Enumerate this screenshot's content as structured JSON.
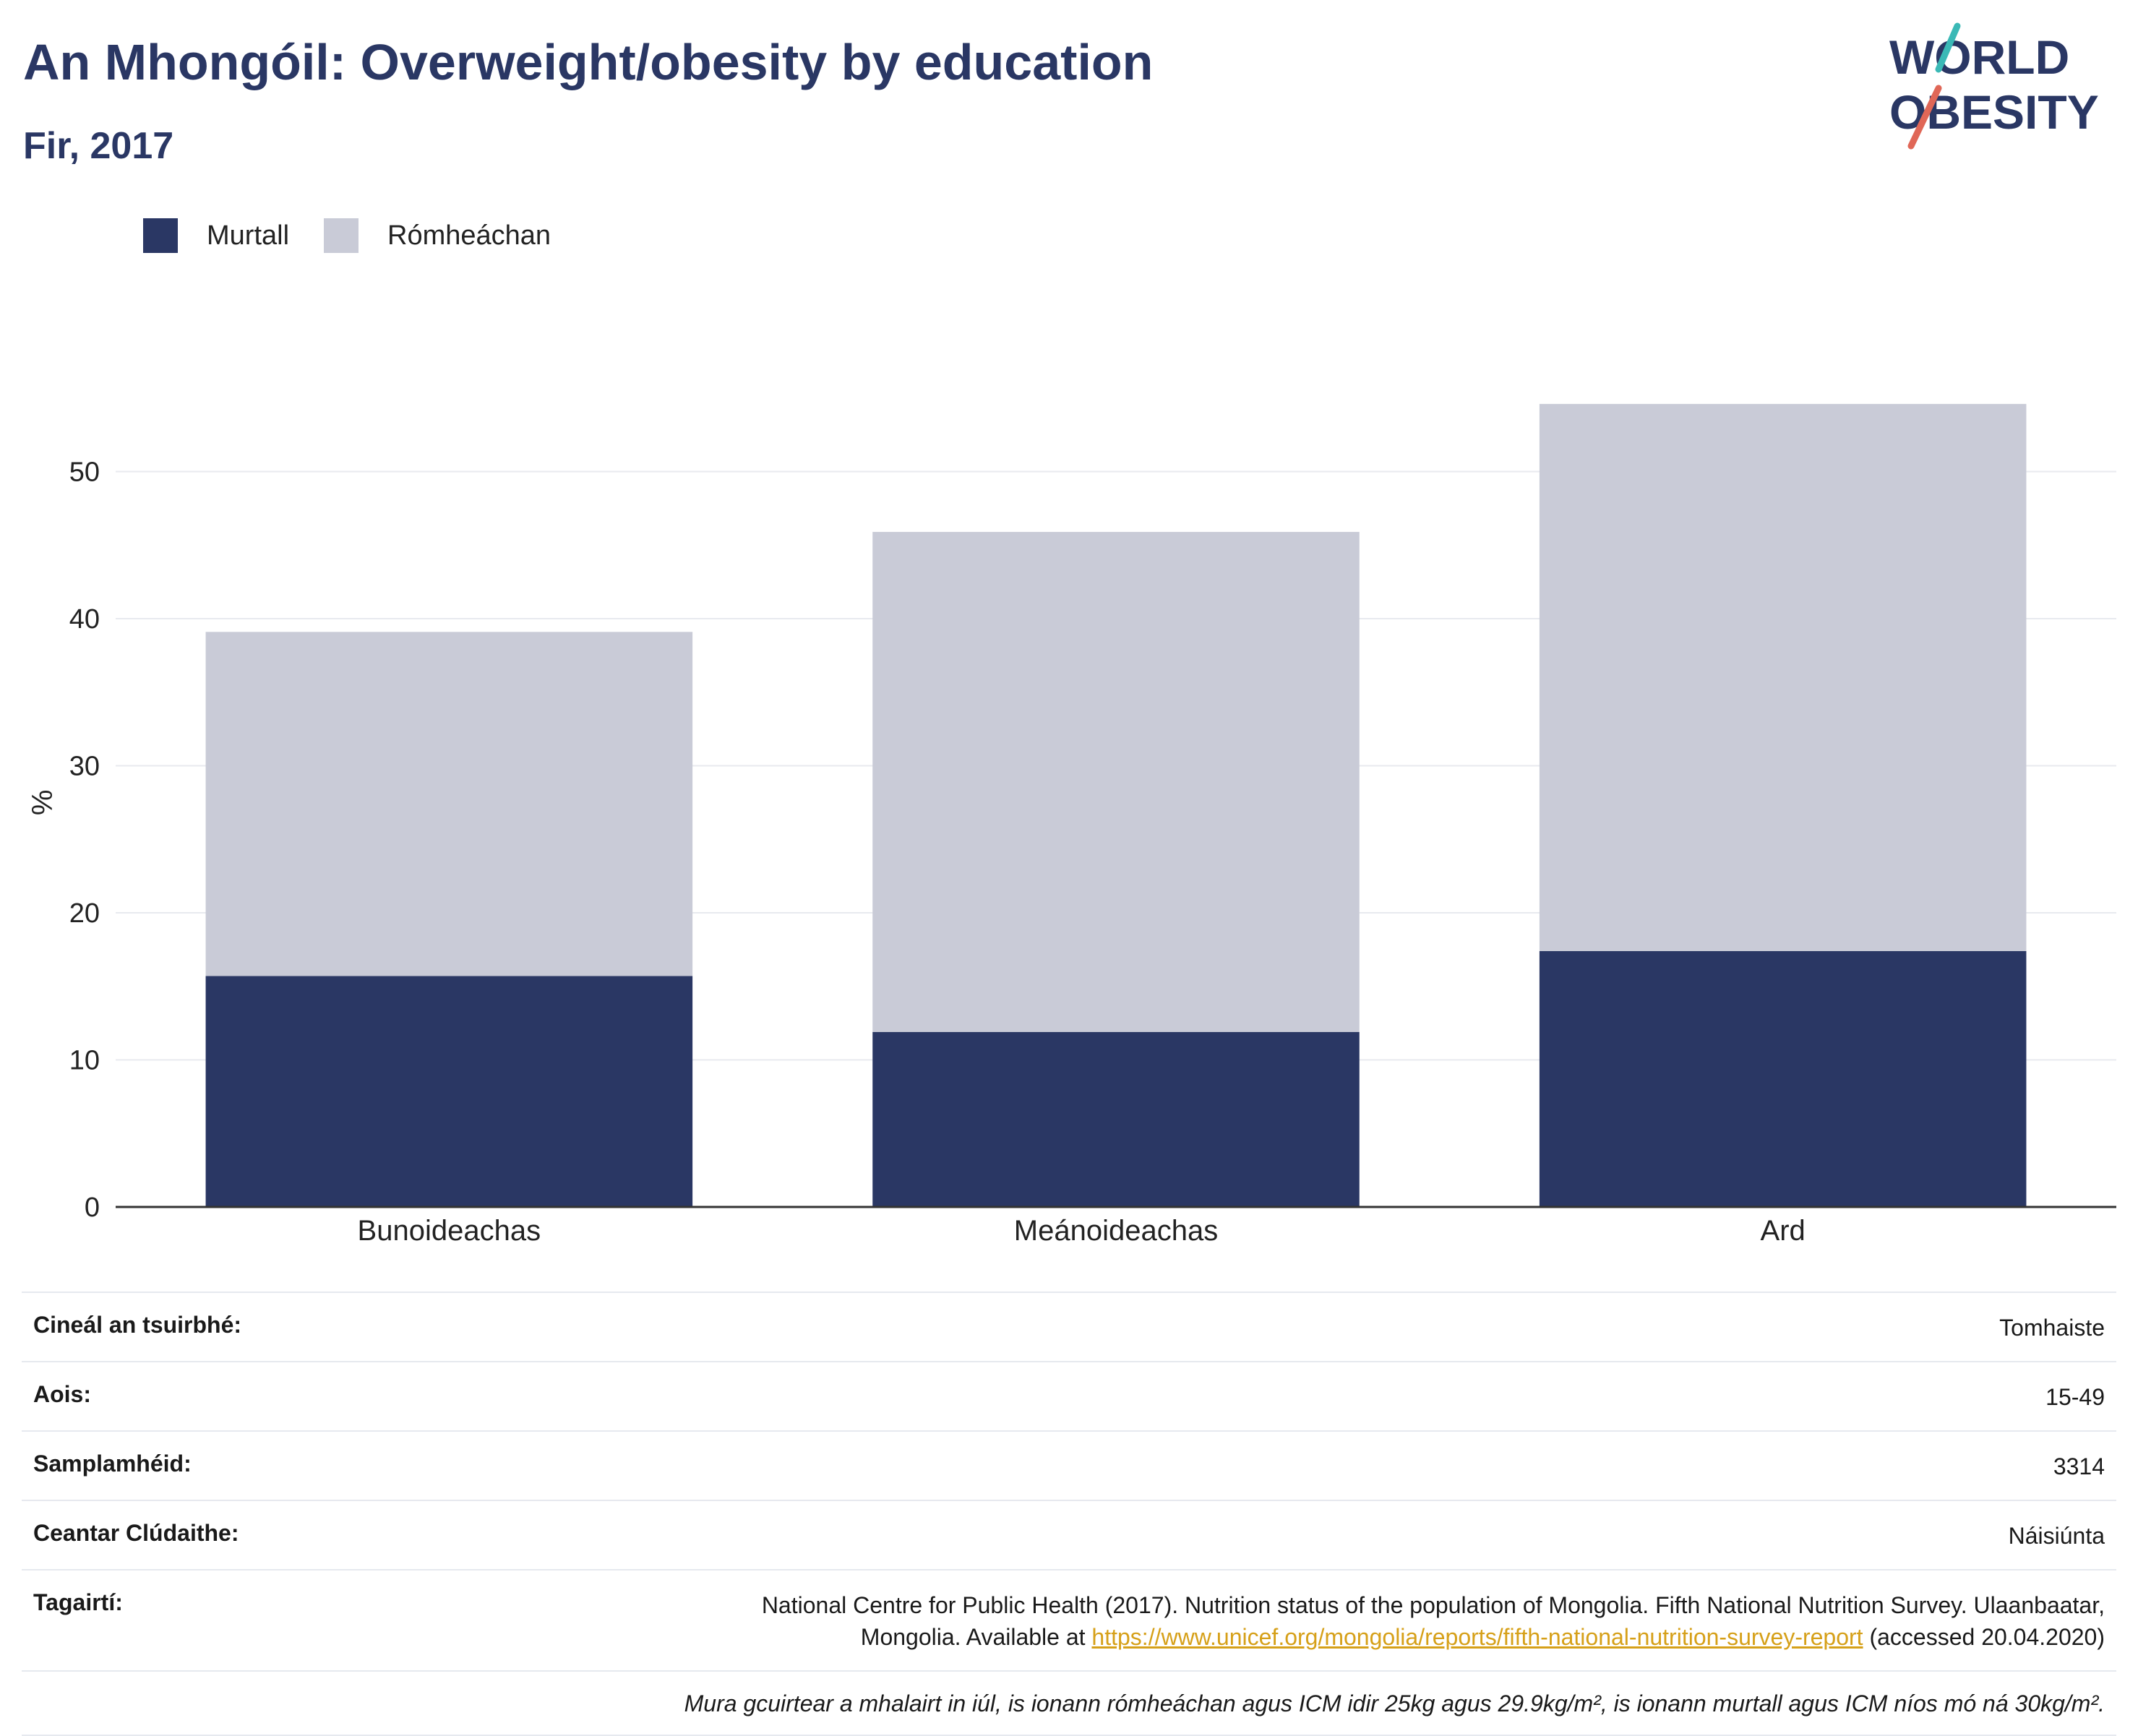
{
  "header": {
    "title": "An Mhongóil: Overweight/obesity by education",
    "subtitle": "Fir, 2017"
  },
  "logo": {
    "line1": "WORLD",
    "line2": "OBESITY"
  },
  "legend": [
    {
      "label": "Murtall",
      "color": "#2a3764"
    },
    {
      "label": "Rómheáchan",
      "color": "#c9cbd7"
    }
  ],
  "chart_data": {
    "type": "bar",
    "stacked": true,
    "categories": [
      "Bunoideachas",
      "Meánoideachas",
      "Ard"
    ],
    "series": [
      {
        "name": "Murtall",
        "values": [
          15.7,
          11.9,
          17.4
        ],
        "color": "#2a3764"
      },
      {
        "name": "Rómheáchan",
        "values": [
          23.4,
          34.0,
          37.2
        ],
        "color": "#c9cbd7"
      }
    ],
    "ylabel": "%",
    "ylim": [
      0,
      55
    ],
    "yticks": [
      0,
      10,
      20,
      30,
      40,
      50
    ],
    "grid": true,
    "legend_position": "top-left"
  },
  "info": {
    "rows": [
      {
        "label": "Cineál an tsuirbhé:",
        "value": "Tomhaiste"
      },
      {
        "label": "Aois:",
        "value": "15-49"
      },
      {
        "label": "Samplamhéid:",
        "value": "3314"
      },
      {
        "label": "Ceantar Clúdaithe:",
        "value": "Náisiúnta"
      }
    ],
    "reference": {
      "label": "Tagairtí:",
      "line1": "National Centre for Public Health (2017). Nutrition status of the population of Mongolia. Fifth National Nutrition Survey. Ulaanbaatar,",
      "line2_prefix": "Mongolia. Available at ",
      "link": "https://www.unicef.org/mongolia/reports/fifth-national-nutrition-survey-report",
      "line2_suffix": " (accessed 20.04.2020)"
    },
    "note": "Mura gcuirtear a mhalairt in iúl, is ionann rómheáchan agus ICM idir 25kg agus 29.9kg/m², is ionann murtall agus ICM níos mó ná 30kg/m²."
  }
}
